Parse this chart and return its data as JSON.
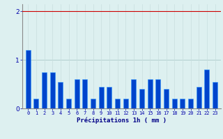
{
  "hours": [
    0,
    1,
    2,
    3,
    4,
    5,
    6,
    7,
    8,
    9,
    10,
    11,
    12,
    13,
    14,
    15,
    16,
    17,
    18,
    19,
    20,
    21,
    22,
    23
  ],
  "values": [
    1.2,
    0.2,
    0.75,
    0.75,
    0.55,
    0.2,
    0.6,
    0.6,
    0.2,
    0.45,
    0.45,
    0.2,
    0.2,
    0.6,
    0.4,
    0.6,
    0.6,
    0.4,
    0.2,
    0.2,
    0.2,
    0.45,
    0.8,
    0.55
  ],
  "bar_color": "#0044cc",
  "bar_edge_color": "#3399ff",
  "background_color": "#ddf0f0",
  "grid_color_h": "#b0cece",
  "grid_color_v": "#c8dede",
  "xlabel": "Précipitations 1h ( mm )",
  "xlabel_color": "#000088",
  "tick_color": "#0000aa",
  "axis_color": "#888888",
  "ylim": [
    0,
    2.15
  ],
  "yticks": [
    0,
    1,
    2
  ],
  "redline_y": 2.0,
  "redline_color": "#cc0000"
}
